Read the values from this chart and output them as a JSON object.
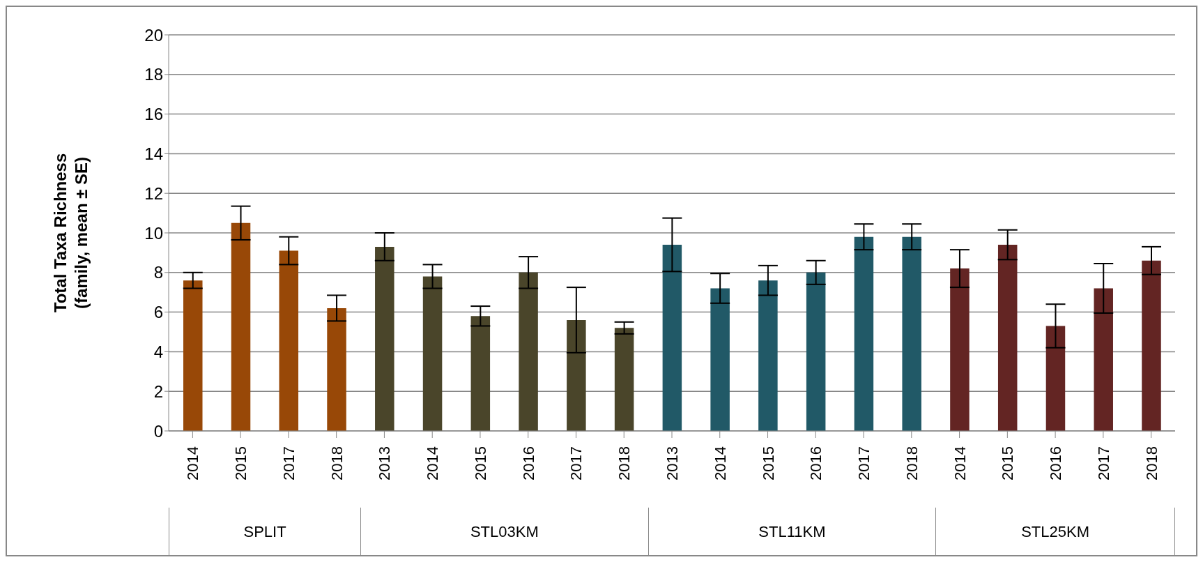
{
  "chart_data": {
    "type": "bar",
    "ylabel": "Total Taxa Richness\n(family, mean ± SE)",
    "categories": [
      "2014",
      "2015",
      "2017",
      "2018",
      "2013",
      "2014",
      "2015",
      "2016",
      "2017",
      "2018",
      "2013",
      "2014",
      "2015",
      "2016",
      "2017",
      "2018",
      "2014",
      "2015",
      "2016",
      "2017",
      "2018"
    ],
    "values": [
      7.6,
      10.5,
      9.1,
      6.2,
      9.3,
      7.8,
      5.8,
      8.0,
      5.6,
      5.2,
      9.4,
      7.2,
      7.6,
      8.0,
      9.8,
      9.8,
      8.2,
      9.4,
      5.3,
      7.2,
      8.6
    ],
    "errors": [
      0.4,
      0.85,
      0.7,
      0.65,
      0.7,
      0.6,
      0.5,
      0.8,
      1.65,
      0.3,
      1.35,
      0.75,
      0.75,
      0.6,
      0.65,
      0.65,
      0.95,
      0.75,
      1.1,
      1.25,
      0.7
    ],
    "colors": [
      "#984807",
      "#984807",
      "#984807",
      "#984807",
      "#4a452a",
      "#4a452a",
      "#4a452a",
      "#4a452a",
      "#4a452a",
      "#4a452a",
      "#215967",
      "#215967",
      "#215967",
      "#215967",
      "#215967",
      "#215967",
      "#632523",
      "#632523",
      "#632523",
      "#632523",
      "#632523"
    ],
    "annotations": [
      "SPLIT",
      "STL03KM",
      "STL11KM",
      "STL25KM"
    ],
    "ylim": [
      0,
      20
    ],
    "yticks": [
      0,
      2,
      4,
      6,
      8,
      10,
      12,
      14,
      16,
      18,
      20
    ],
    "grid": "y"
  }
}
